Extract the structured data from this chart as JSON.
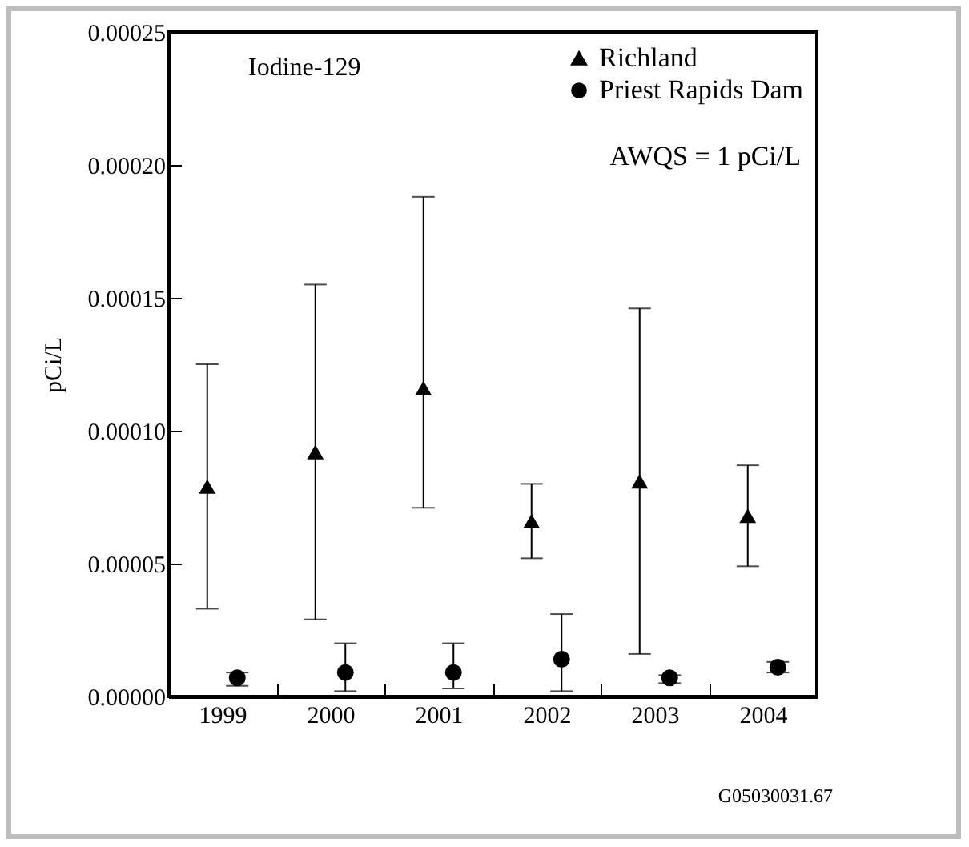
{
  "chart_data": {
    "type": "scatter",
    "ylabel": "pCi/L",
    "categories": [
      "1999",
      "2000",
      "2001",
      "2002",
      "2003",
      "2004"
    ],
    "series": [
      {
        "name": "Richland",
        "color": "#000000",
        "marker": "triangle",
        "values": [
          7.9e-05,
          9.2e-05,
          0.000116,
          6.6e-05,
          8.1e-05,
          6.8e-05
        ],
        "errors": [
          [
            3.3e-05,
            0.000125
          ],
          [
            2.9e-05,
            0.000155
          ],
          [
            7.1e-05,
            0.000188
          ],
          [
            5.2e-05,
            8e-05
          ],
          [
            1.6e-05,
            0.000146
          ],
          [
            4.9e-05,
            8.7e-05
          ]
        ]
      },
      {
        "name": "Priest Rapids Dam",
        "color": "#000000",
        "marker": "circle",
        "values": [
          7e-06,
          9e-06,
          9e-06,
          1.4e-05,
          7e-06,
          1.1e-05
        ],
        "errors": [
          [
            4e-06,
            9e-06
          ],
          [
            2e-06,
            2e-05
          ],
          [
            3e-06,
            2e-05
          ],
          [
            2e-06,
            3.1e-05
          ],
          [
            5e-06,
            8e-06
          ],
          [
            9e-06,
            1.3e-05
          ]
        ]
      }
    ],
    "ylim": [
      0,
      0.00025
    ],
    "yticks": [
      {
        "value": 0,
        "label": "0.00000"
      },
      {
        "value": 5e-05,
        "label": "0.00005"
      },
      {
        "value": 0.0001,
        "label": "0.00010"
      },
      {
        "value": 0.00015,
        "label": "0.00015"
      },
      {
        "value": 0.0002,
        "label": "0.00020"
      },
      {
        "value": 0.00025,
        "label": "0.00025"
      }
    ],
    "legend": "top right",
    "grid": false,
    "annotations": [
      "Iodine-129",
      "AWQS = 1 pCi/L",
      "G05030031.67"
    ]
  }
}
